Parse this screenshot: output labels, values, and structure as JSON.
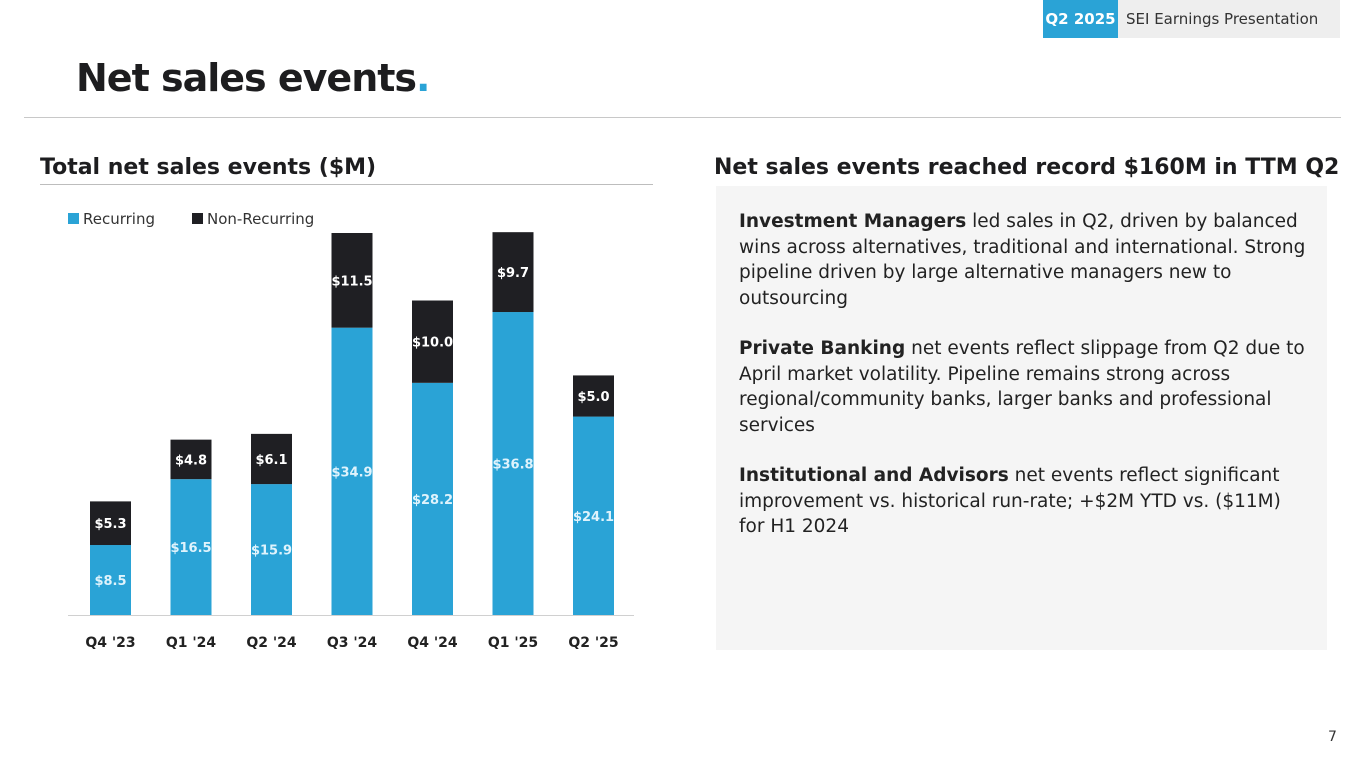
{
  "header": {
    "period_badge": "Q2 2025",
    "presentation_title": "SEI Earnings Presentation",
    "page_title": "Net sales events",
    "page_title_dot": ".",
    "page_number": "7"
  },
  "left": {
    "heading": "Total net sales events ($M)"
  },
  "right": {
    "heading": "Net sales events reached record $160M in TTM Q2",
    "paragraphs": [
      {
        "bold": "Investment Managers",
        "text": " led sales in Q2, driven by balanced wins across alternatives, traditional and international. Strong pipeline driven by large alternative managers new to outsourcing"
      },
      {
        "bold": "Private Banking",
        "text": " net events reflect slippage from Q2 due to April market volatility. Pipeline remains strong across regional/community banks, larger banks and professional services"
      },
      {
        "bold": "Institutional and Advisors",
        "text": " net events reflect significant improvement vs. historical run-rate; +$2M YTD vs. ($11M) for H1 2024"
      }
    ]
  },
  "colors": {
    "recurring": "#2aa3d6",
    "non_recurring": "#1f1f23"
  },
  "chart_data": {
    "type": "bar",
    "stacked": true,
    "title": "Total net sales events ($M)",
    "categories": [
      "Q4 '23",
      "Q1 '24",
      "Q2 '24",
      "Q3 '24",
      "Q4 '24",
      "Q1 '25",
      "Q2 '25"
    ],
    "series": [
      {
        "name": "Recurring",
        "values": [
          8.5,
          16.5,
          15.9,
          34.9,
          28.2,
          36.8,
          24.1
        ],
        "labels": [
          "$8.5",
          "$16.5",
          "$15.9",
          "$34.9",
          "$28.2",
          "$36.8",
          "$24.1"
        ]
      },
      {
        "name": "Non-Recurring",
        "values": [
          5.3,
          4.8,
          6.1,
          11.5,
          10.0,
          9.7,
          5.0
        ],
        "labels": [
          "$5.3",
          "$4.8",
          "$6.1",
          "$11.5",
          "$10.0",
          "$9.7",
          "$5.0"
        ]
      }
    ],
    "legend_position": "top-left",
    "xlabel": "",
    "ylabel": "",
    "ylim": [
      0,
      46.4
    ]
  }
}
